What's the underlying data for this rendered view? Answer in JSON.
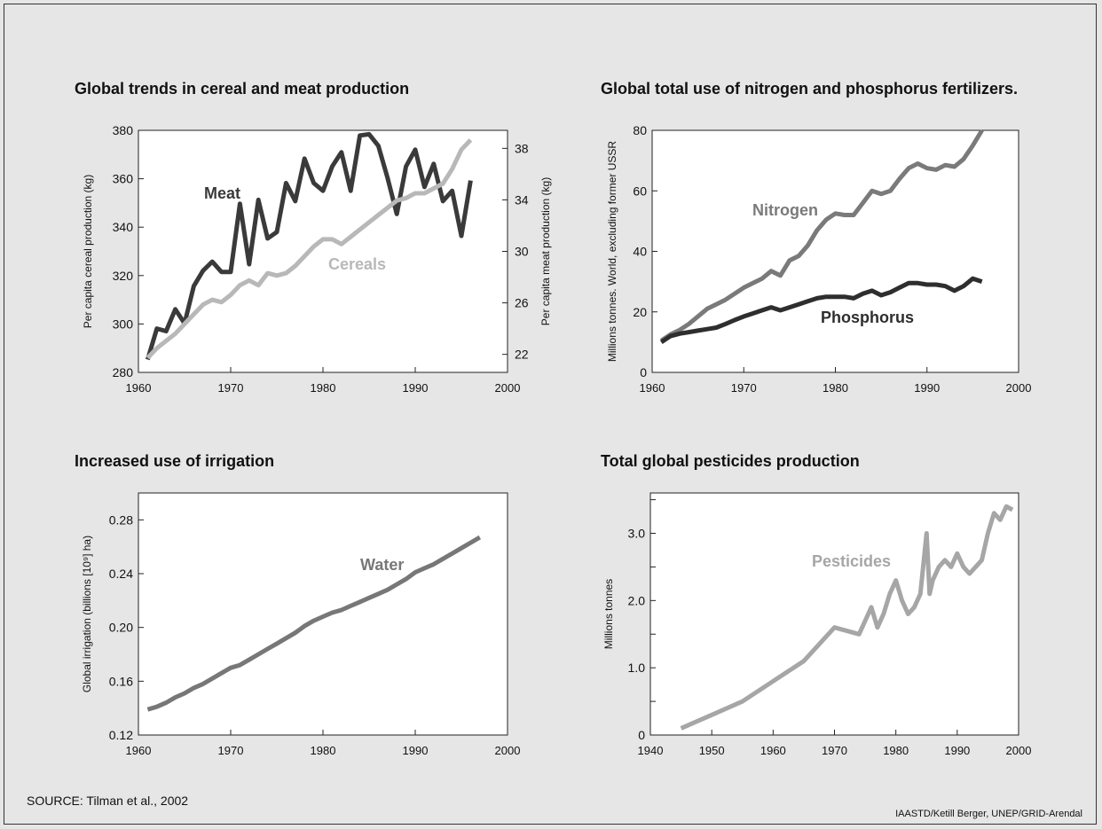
{
  "source": "SOURCE: Tilman et al., 2002",
  "credit": "IAASTD/Ketill Berger, UNEP/GRID-Arendal",
  "chart_data": [
    {
      "type": "line",
      "title": "Global trends in cereal and meat production",
      "ylabel": "Per capita cereal production (kg)",
      "y2label": "Per capita meat production (kg)",
      "xlim": [
        1960,
        2000
      ],
      "ylim": [
        280,
        380
      ],
      "y2lim": [
        20.6,
        39.4
      ],
      "x_ticks": [
        1960,
        1970,
        1980,
        1990,
        2000
      ],
      "y_ticks": [
        280,
        300,
        320,
        340,
        360,
        380
      ],
      "y2_ticks": [
        22,
        26,
        30,
        34,
        38
      ],
      "series": [
        {
          "name": "Meat",
          "axis": "right",
          "color": "#3a3a3a",
          "x": [
            1961,
            1962,
            1963,
            1964,
            1965,
            1966,
            1967,
            1968,
            1969,
            1970,
            1971,
            1972,
            1973,
            1974,
            1975,
            1976,
            1977,
            1978,
            1979,
            1980,
            1981,
            1982,
            1983,
            1984,
            1985,
            1986,
            1987,
            1988,
            1989,
            1990,
            1991,
            1992,
            1993,
            1994,
            1995,
            1996
          ],
          "y": [
            21.6,
            24.0,
            23.8,
            25.5,
            24.4,
            27.3,
            28.5,
            29.2,
            28.4,
            28.4,
            33.7,
            29.0,
            34.0,
            31.0,
            31.5,
            35.3,
            33.9,
            37.2,
            35.3,
            34.7,
            36.6,
            37.7,
            34.7,
            39.0,
            39.1,
            38.2,
            35.7,
            32.9,
            36.6,
            37.9,
            35.0,
            36.8,
            33.9,
            34.7,
            31.2,
            35.5
          ]
        },
        {
          "name": "Cereals",
          "axis": "left",
          "color": "#b8b8b8",
          "x": [
            1961,
            1962,
            1963,
            1964,
            1965,
            1966,
            1967,
            1968,
            1969,
            1970,
            1971,
            1972,
            1973,
            1974,
            1975,
            1976,
            1977,
            1978,
            1979,
            1980,
            1981,
            1982,
            1983,
            1984,
            1985,
            1986,
            1987,
            1988,
            1989,
            1990,
            1991,
            1992,
            1993,
            1994,
            1995,
            1996
          ],
          "y": [
            286,
            290,
            293,
            296,
            300,
            304,
            308,
            310,
            309,
            312,
            316,
            318,
            316,
            321,
            320,
            321,
            324,
            328,
            332,
            335,
            335,
            333,
            336,
            339,
            342,
            345,
            348,
            351,
            352,
            354,
            354,
            356,
            358,
            364,
            372,
            376
          ]
        }
      ],
      "annotations": [
        "Meat",
        "Cereals"
      ]
    },
    {
      "type": "line",
      "title": "Global total use of nitrogen and phosphorus fertilizers.",
      "ylabel": "Millions tonnes. World, excluding former USSR",
      "xlim": [
        1960,
        2000
      ],
      "ylim": [
        0,
        80
      ],
      "x_ticks": [
        1960,
        1970,
        1980,
        1990,
        2000
      ],
      "y_ticks": [
        0,
        20,
        40,
        60,
        80
      ],
      "series": [
        {
          "name": "Nitrogen",
          "color": "#7a7a7a",
          "x": [
            1961,
            1962,
            1963,
            1964,
            1965,
            1966,
            1967,
            1968,
            1969,
            1970,
            1971,
            1972,
            1973,
            1974,
            1975,
            1976,
            1977,
            1978,
            1979,
            1980,
            1981,
            1982,
            1983,
            1984,
            1985,
            1986,
            1987,
            1988,
            1989,
            1990,
            1991,
            1992,
            1993,
            1994,
            1995,
            1996
          ],
          "y": [
            10.5,
            12.5,
            14.0,
            16.0,
            18.5,
            21.0,
            22.5,
            24.0,
            26.0,
            28.0,
            29.5,
            31.0,
            33.5,
            32.0,
            37.0,
            38.5,
            42.0,
            47.0,
            50.5,
            52.5,
            52.0,
            52.0,
            56.0,
            60.0,
            59.0,
            60.0,
            64.0,
            67.5,
            69.0,
            67.5,
            67.0,
            68.5,
            68.0,
            70.5,
            75.0,
            80.0
          ]
        },
        {
          "name": "Phosphorus",
          "color": "#2e2e2e",
          "x": [
            1961,
            1962,
            1963,
            1964,
            1965,
            1966,
            1967,
            1968,
            1969,
            1970,
            1971,
            1972,
            1973,
            1974,
            1975,
            1976,
            1977,
            1978,
            1979,
            1980,
            1981,
            1982,
            1983,
            1984,
            1985,
            1986,
            1987,
            1988,
            1989,
            1990,
            1991,
            1992,
            1993,
            1994,
            1995,
            1996
          ],
          "y": [
            10.0,
            12.0,
            12.8,
            13.3,
            13.8,
            14.3,
            14.8,
            16.0,
            17.3,
            18.5,
            19.5,
            20.5,
            21.5,
            20.5,
            21.5,
            22.5,
            23.5,
            24.5,
            25.0,
            25.0,
            25.0,
            24.5,
            26.0,
            27.0,
            25.5,
            26.5,
            28.0,
            29.5,
            29.5,
            29.0,
            29.0,
            28.5,
            27.0,
            28.5,
            31.0,
            30.0
          ]
        }
      ],
      "annotations": [
        "Nitrogen",
        "Phosphorus"
      ]
    },
    {
      "type": "line",
      "title": "Increased use of irrigation",
      "ylabel": "Global irrigation (billions [10⁹] ha)",
      "xlim": [
        1960,
        2000
      ],
      "ylim": [
        0.12,
        0.3
      ],
      "x_ticks": [
        1960,
        1970,
        1980,
        1990,
        2000
      ],
      "y_ticks": [
        0.12,
        0.16,
        0.2,
        0.24,
        0.28
      ],
      "y_tick_labels": [
        "0.12",
        "0.16",
        "0.20",
        "0.24",
        "0.28"
      ],
      "series": [
        {
          "name": "Water",
          "color": "#777777",
          "x": [
            1961,
            1962,
            1963,
            1964,
            1965,
            1966,
            1967,
            1968,
            1969,
            1970,
            1971,
            1972,
            1973,
            1974,
            1975,
            1976,
            1977,
            1978,
            1979,
            1980,
            1981,
            1982,
            1983,
            1984,
            1985,
            1986,
            1987,
            1988,
            1989,
            1990,
            1991,
            1992,
            1993,
            1994,
            1995,
            1996,
            1997
          ],
          "y": [
            0.139,
            0.141,
            0.144,
            0.148,
            0.151,
            0.155,
            0.158,
            0.162,
            0.166,
            0.17,
            0.172,
            0.176,
            0.18,
            0.184,
            0.188,
            0.192,
            0.196,
            0.201,
            0.205,
            0.208,
            0.211,
            0.213,
            0.216,
            0.219,
            0.222,
            0.225,
            0.228,
            0.232,
            0.236,
            0.241,
            0.244,
            0.247,
            0.251,
            0.255,
            0.259,
            0.263,
            0.267
          ]
        }
      ],
      "annotations": [
        "Water"
      ]
    },
    {
      "type": "line",
      "title": "Total global pesticides production",
      "ylabel": "Millions tonnes",
      "xlim": [
        1940,
        2000
      ],
      "ylim": [
        0,
        3.6
      ],
      "x_ticks": [
        1940,
        1950,
        1960,
        1970,
        1980,
        1990,
        2000
      ],
      "y_ticks": [
        0,
        1.0,
        2.0,
        3.0
      ],
      "y_tick_labels": [
        "0",
        "1.0",
        "2.0",
        "3.0"
      ],
      "y_minor_ticks": [
        0.5,
        1.5,
        2.5,
        3.5
      ],
      "series": [
        {
          "name": "Pesticides",
          "color": "#a6a6a6",
          "x": [
            1945,
            1950,
            1955,
            1960,
            1965,
            1970,
            1974,
            1975,
            1976,
            1977,
            1978,
            1979,
            1980,
            1981,
            1982,
            1983,
            1984,
            1985,
            1985.5,
            1986,
            1987,
            1988,
            1989,
            1990,
            1991,
            1992,
            1993,
            1994,
            1995,
            1996,
            1997,
            1998,
            1999
          ],
          "y": [
            0.1,
            0.3,
            0.5,
            0.8,
            1.1,
            1.6,
            1.5,
            1.7,
            1.9,
            1.6,
            1.8,
            2.1,
            2.3,
            2.0,
            1.8,
            1.9,
            2.1,
            3.0,
            2.1,
            2.3,
            2.5,
            2.6,
            2.5,
            2.7,
            2.5,
            2.4,
            2.5,
            2.6,
            3.0,
            3.3,
            3.2,
            3.4,
            3.35
          ]
        }
      ],
      "annotations": [
        "Pesticides"
      ]
    }
  ]
}
